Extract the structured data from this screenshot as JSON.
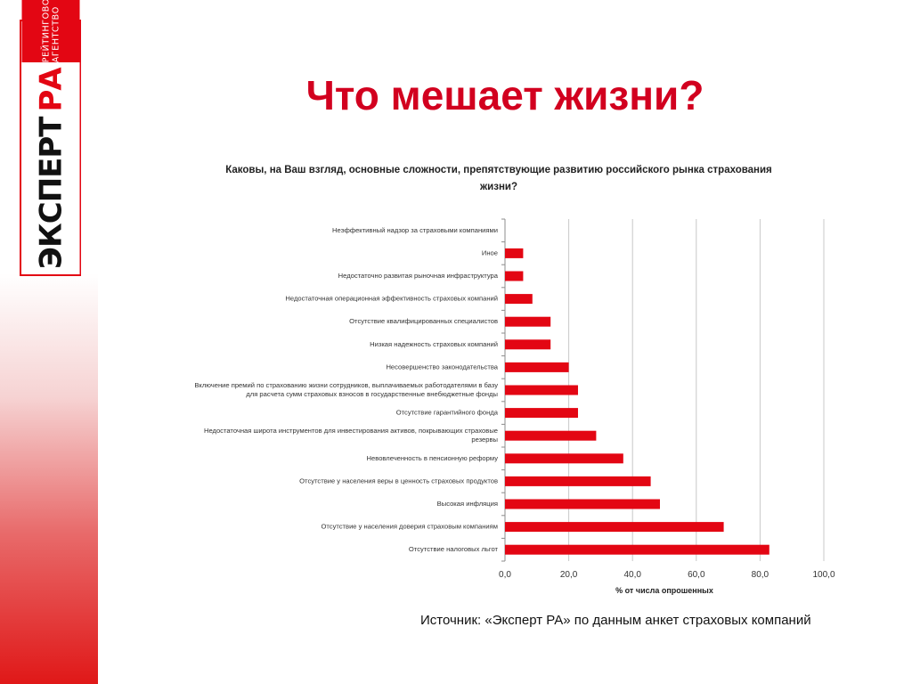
{
  "page": {
    "title": "Что мешает жизни?",
    "source": "Источник: «Эксперт РА» по данным анкет страховых компаний"
  },
  "logo": {
    "main_word_1": "ЭКСПЕРТ",
    "main_word_2": "РА",
    "sub": "РЕЙТИНГОВОЕ АГЕНТСТВО"
  },
  "colors": {
    "accent": "#d2001f",
    "bar": "#e30613",
    "grid": "#c8c8c8"
  },
  "chart_data": {
    "type": "bar",
    "orientation": "horizontal",
    "title": "Каковы, на Ваш взгляд, основные сложности, препятствующие развитию российского рынка страхования жизни?",
    "xlabel": "% от числа опрошенных",
    "xlim": [
      0,
      100
    ],
    "xticks": [
      "0,0",
      "20,0",
      "40,0",
      "60,0",
      "80,0",
      "100,0"
    ],
    "xtick_values": [
      0,
      20,
      40,
      60,
      80,
      100
    ],
    "grid": true,
    "categories": [
      [
        "Неэффективный надзор за страховыми компаниями"
      ],
      [
        "Иное"
      ],
      [
        "Недостаточно развитая рыночная инфраструктура"
      ],
      [
        "Недостаточная операционная эффективность страховых компаний"
      ],
      [
        "Отсутствие квалифицированных специалистов"
      ],
      [
        "Низкая надежность страховых компаний"
      ],
      [
        "Несовершенство законодательства"
      ],
      [
        "Включение премий по страхованию жизни сотрудников, выплачиваемых работодателями в базу",
        "для расчета сумм страховых взносов в государственные внебюджетные фонды"
      ],
      [
        "Отсутствие гарантийного фонда"
      ],
      [
        "Недостаточная широта инструментов для инвестирования активов, покрывающих страховые",
        "резервы"
      ],
      [
        "Невовлеченность в пенсионную реформу"
      ],
      [
        "Отсутствие у населения веры в ценность страховых продуктов"
      ],
      [
        "Высокая инфляция"
      ],
      [
        "Отсутствие у населения доверия страховым компаниям"
      ],
      [
        "Отсутствие налоговых льгот"
      ]
    ],
    "values": [
      0,
      5.7,
      5.7,
      8.6,
      14.3,
      14.3,
      20.0,
      22.9,
      22.9,
      28.6,
      37.1,
      45.7,
      48.6,
      68.6,
      82.9
    ]
  }
}
